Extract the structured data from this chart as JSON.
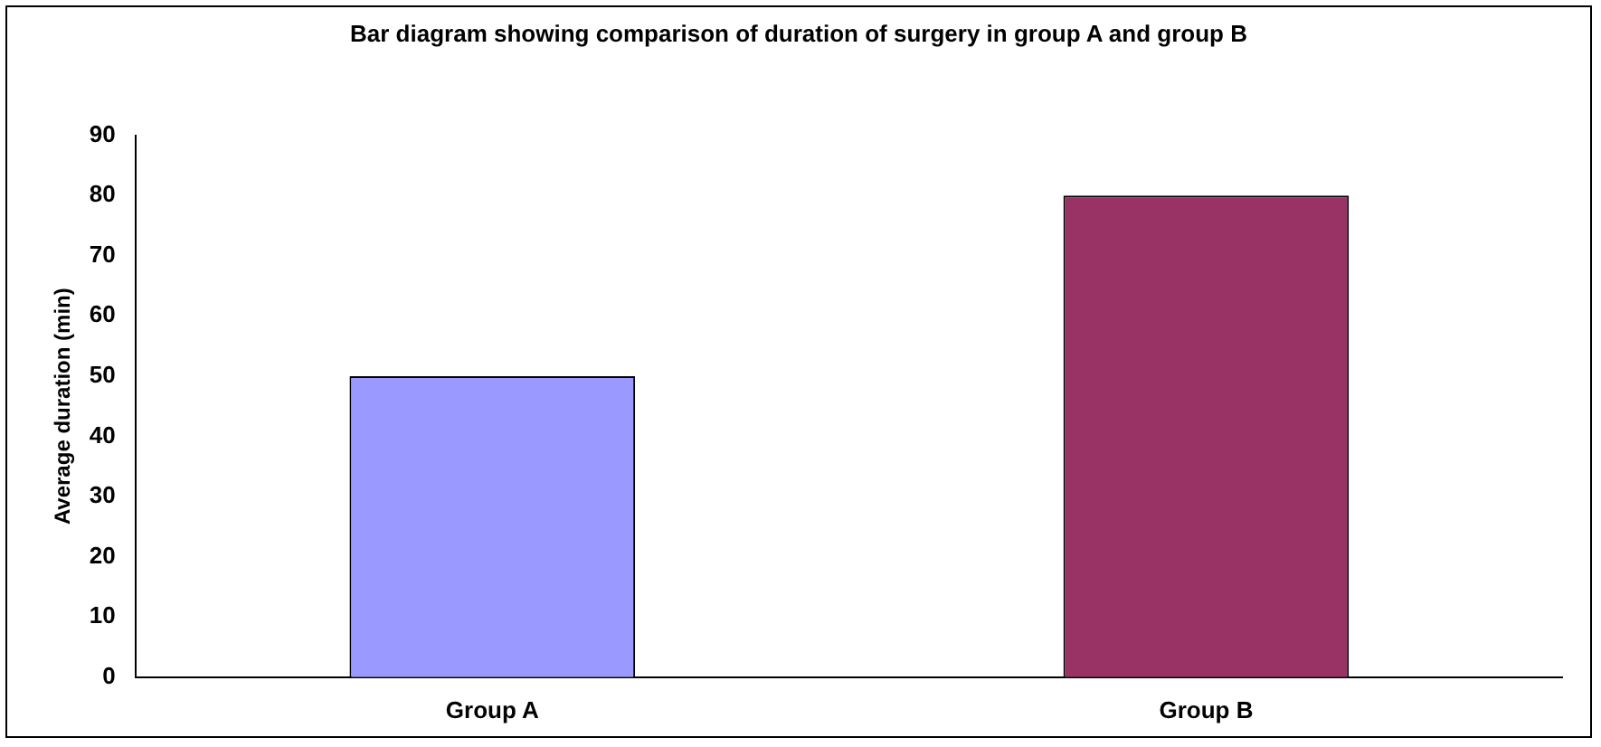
{
  "chart_data": {
    "type": "bar",
    "title": "Bar diagram showing comparison of duration of surgery in group A and group B",
    "ylabel": "Average duration (min)",
    "categories": [
      "Group A",
      "Group B"
    ],
    "values": [
      50,
      80
    ],
    "colors": [
      "#9999ff",
      "#993366"
    ],
    "ylim": [
      0,
      90
    ],
    "yticks": [
      0,
      10,
      20,
      30,
      40,
      50,
      60,
      70,
      80,
      90
    ],
    "grid": false,
    "legend": false
  }
}
